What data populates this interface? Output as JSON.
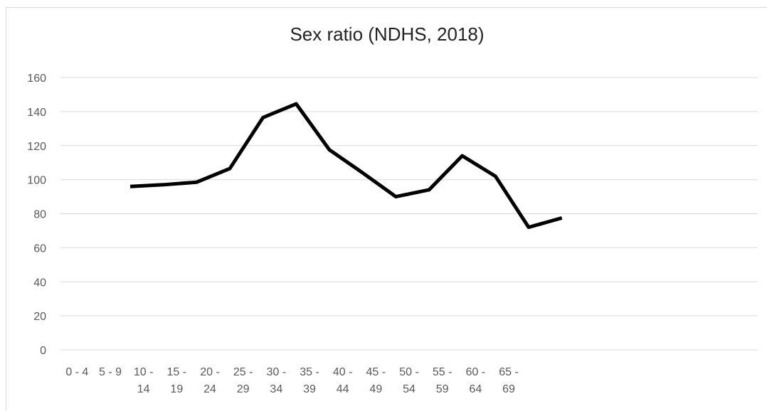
{
  "chart_data": {
    "type": "line",
    "title": "Sex ratio (NDHS, 2018)",
    "categories": [
      "0 - 4",
      "5 - 9",
      "10 - 14",
      "15 - 19",
      "20 - 24",
      "25 - 29",
      "30 - 34",
      "35 - 39",
      "40 - 44",
      "45 - 49",
      "50 - 54",
      "55 - 59",
      "60 - 64",
      "65 - 69",
      null,
      null,
      null,
      null,
      null,
      null,
      null
    ],
    "series": [
      {
        "name": "Sex ratio",
        "color": "#000000",
        "values": [
          null,
          96,
          97,
          98.5,
          106.5,
          136.5,
          144.5,
          117.5,
          104,
          90,
          94,
          114,
          102,
          72,
          77.5,
          null,
          null,
          null,
          null,
          null,
          null
        ]
      }
    ],
    "ylim": [
      0,
      160
    ],
    "yticks": [
      0,
      20,
      40,
      60,
      80,
      100,
      120,
      140,
      160
    ],
    "grid": true
  }
}
